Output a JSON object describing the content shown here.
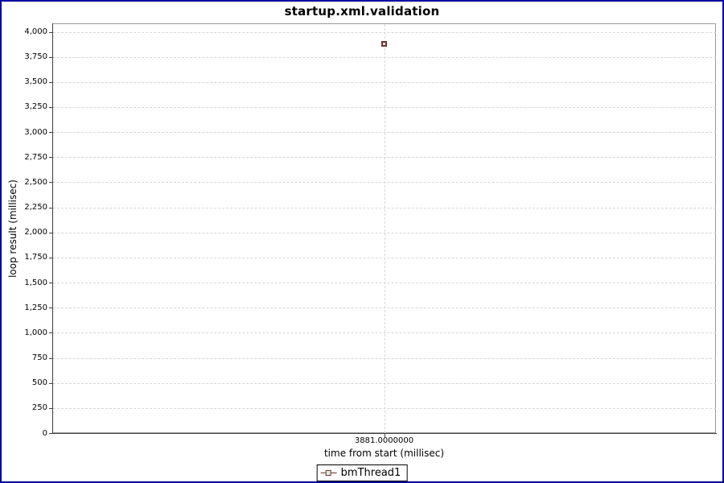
{
  "window": {
    "title": "startup.xml.validation"
  },
  "chart_data": {
    "type": "scatter",
    "title": "startup.xml.validation",
    "xlabel": "time from start (millisec)",
    "ylabel": "loop result (millisec)",
    "ylim": [
      0,
      4000
    ],
    "ytick_step": 250,
    "grid": "dashed",
    "legend_position": "bottom",
    "yticks": [
      {
        "value": 0,
        "label": "0"
      },
      {
        "value": 250,
        "label": "250"
      },
      {
        "value": 500,
        "label": "500"
      },
      {
        "value": 750,
        "label": "750"
      },
      {
        "value": 1000,
        "label": "1,000"
      },
      {
        "value": 1250,
        "label": "1,250"
      },
      {
        "value": 1500,
        "label": "1,500"
      },
      {
        "value": 1750,
        "label": "1,750"
      },
      {
        "value": 2000,
        "label": "2,000"
      },
      {
        "value": 2250,
        "label": "2,250"
      },
      {
        "value": 2500,
        "label": "2,500"
      },
      {
        "value": 2750,
        "label": "2,750"
      },
      {
        "value": 3000,
        "label": "3,000"
      },
      {
        "value": 3250,
        "label": "3,250"
      },
      {
        "value": 3500,
        "label": "3,500"
      },
      {
        "value": 3750,
        "label": "3,750"
      },
      {
        "value": 4000,
        "label": "4,000"
      }
    ],
    "xticks": [
      {
        "value": 3881,
        "label": "3881.0000000"
      }
    ],
    "series": [
      {
        "name": "bmThread1",
        "marker": "square",
        "points": [
          {
            "x": 3881,
            "y": 3881
          }
        ]
      }
    ]
  },
  "legend": {
    "items": [
      {
        "label": "bmThread1",
        "marker": "square-on-line"
      }
    ]
  },
  "colors": {
    "window_border": "#0000A0",
    "plot_outline": "#9A9A9A",
    "axis_line": "#3F3F3F",
    "gridline": "#D6D6D6",
    "marker_border": "#6F352C",
    "marker_fill": "#DCEFE2",
    "text": "#000000",
    "background": "#FFFFFF"
  }
}
